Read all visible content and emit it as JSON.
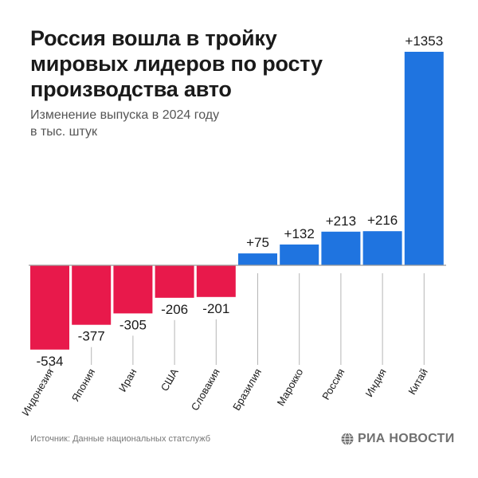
{
  "header": {
    "title_lines": [
      "Россия вошла в тройку",
      "мировых лидеров по росту",
      "производства авто"
    ],
    "subtitle_lines": [
      "Изменение выпуска в 2024 году",
      "в тыс. штук"
    ]
  },
  "footer": {
    "source": "Источник: Данные национальных статслужб",
    "logo_text": "РИА НОВОСТИ",
    "logo_icon": "globe-icon"
  },
  "colors": {
    "negative": "#e8194b",
    "positive": "#1f74e0",
    "baseline": "#9a9a9a",
    "tick": "#b5b5b5"
  },
  "chart_data": {
    "type": "bar",
    "title": "Россия вошла в тройку мировых лидеров по росту производства авто",
    "subtitle": "Изменение выпуска в 2024 году в тыс. штук",
    "categories": [
      "Индонезия",
      "Япония",
      "Иран",
      "США",
      "Словакия",
      "Бразилия",
      "Марокко",
      "Россия",
      "Индия",
      "Китай"
    ],
    "values": [
      -534,
      -377,
      -305,
      -206,
      -201,
      75,
      132,
      213,
      216,
      1353
    ],
    "labels": [
      "-534",
      "-377",
      "-305",
      "-206",
      "-201",
      "+75",
      "+132",
      "+213",
      "+216",
      "+1353"
    ],
    "xlabel": "",
    "ylabel": "",
    "ylim": [
      -534,
      1353
    ],
    "grid": false,
    "legend": "none"
  }
}
